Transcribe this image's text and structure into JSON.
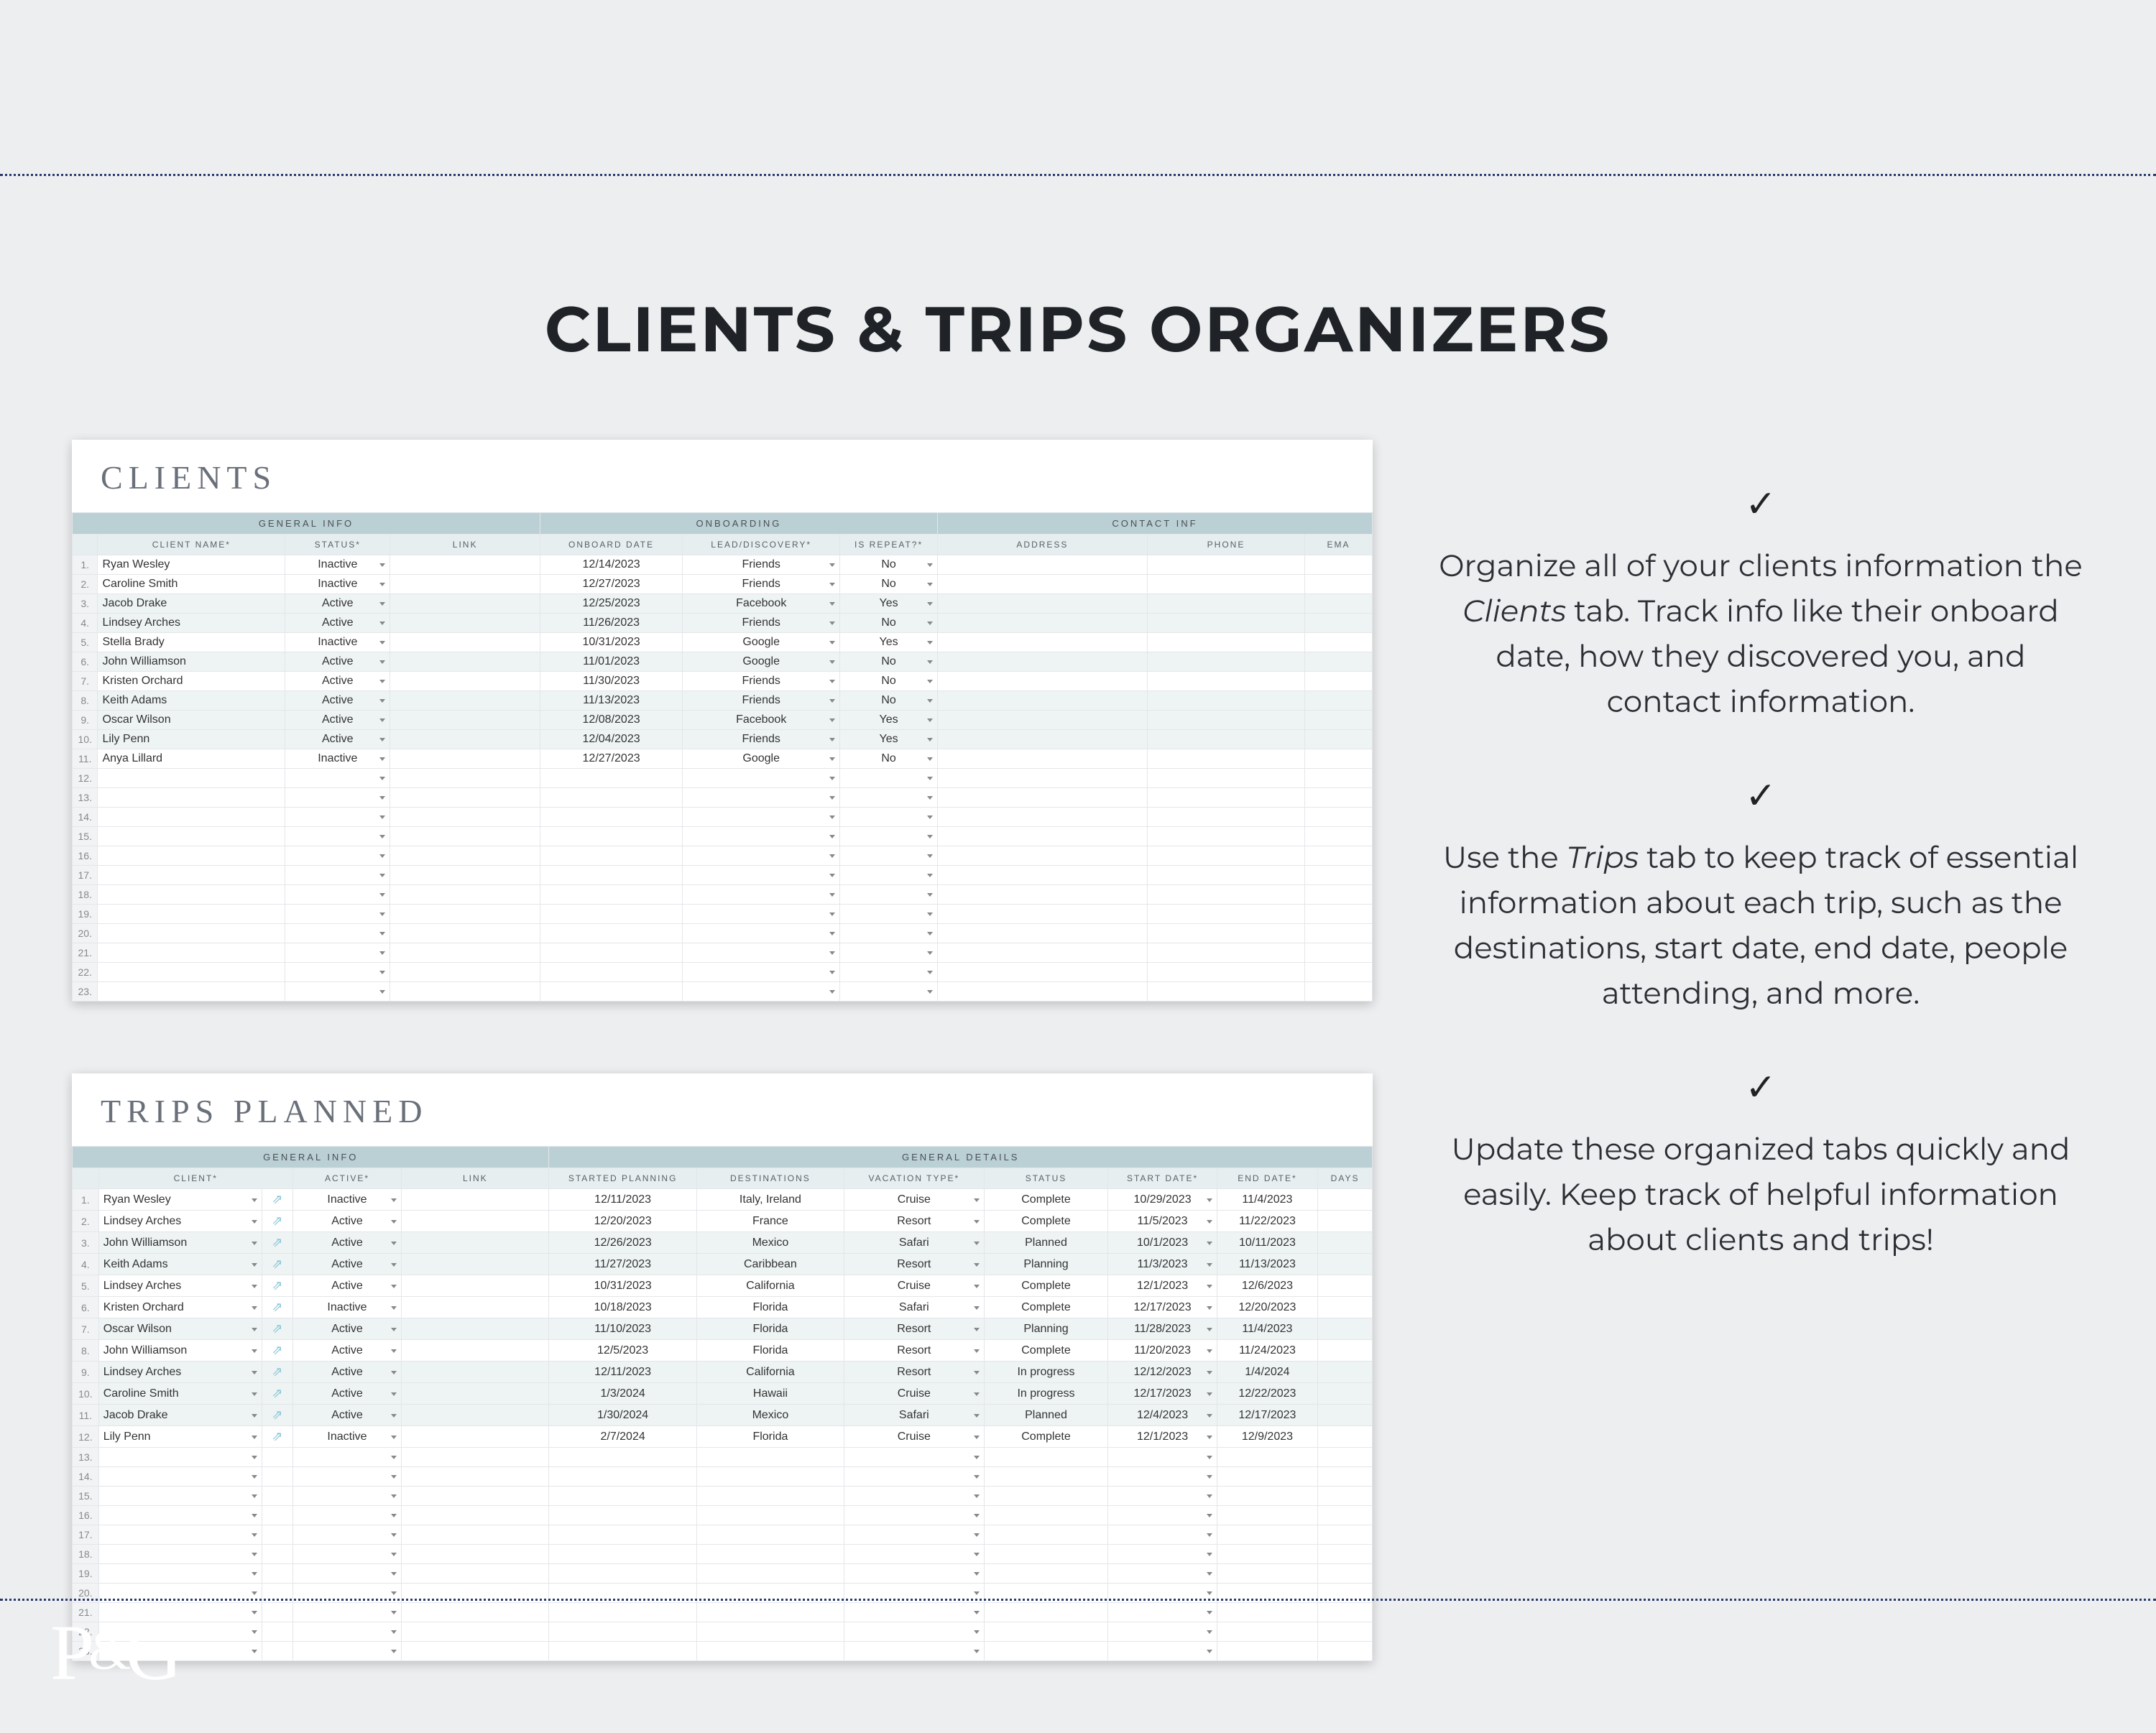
{
  "page": {
    "title": "CLIENTS & TRIPS ORGANIZERS"
  },
  "colors": {
    "page_bg": "#eceef0",
    "dotted_rule": "#2a3a6b",
    "group_bg": "#bbd0d4",
    "header_bg": "#e6eef0",
    "stripe_bg": "#eef3f4",
    "sheet_title_color": "#6a707a",
    "link_icon_color": "#86c5d6"
  },
  "clients": {
    "title": "CLIENTS",
    "row_count": 23,
    "groups": {
      "general": "GENERAL INFO",
      "onboarding": "ONBOARDING",
      "contact": "CONTACT INF"
    },
    "headers": {
      "name": "CLIENT NAME*",
      "status": "STATUS*",
      "link": "LINK",
      "onboard": "ONBOARD DATE",
      "lead": "LEAD/DISCOVERY*",
      "repeat": "IS REPEAT?*",
      "address": "ADDRESS",
      "phone": "PHONE",
      "email": "EMA"
    },
    "rows": [
      {
        "n": "1.",
        "name": "Ryan Wesley",
        "status": "Inactive",
        "onboard": "12/14/2023",
        "lead": "Friends",
        "repeat": "No"
      },
      {
        "n": "2.",
        "name": "Caroline Smith",
        "status": "Inactive",
        "onboard": "12/27/2023",
        "lead": "Friends",
        "repeat": "No"
      },
      {
        "n": "3.",
        "name": "Jacob Drake",
        "status": "Active",
        "onboard": "12/25/2023",
        "lead": "Facebook",
        "repeat": "Yes"
      },
      {
        "n": "4.",
        "name": "Lindsey Arches",
        "status": "Active",
        "onboard": "11/26/2023",
        "lead": "Friends",
        "repeat": "No"
      },
      {
        "n": "5.",
        "name": "Stella Brady",
        "status": "Inactive",
        "onboard": "10/31/2023",
        "lead": "Google",
        "repeat": "Yes"
      },
      {
        "n": "6.",
        "name": "John Williamson",
        "status": "Active",
        "onboard": "11/01/2023",
        "lead": "Google",
        "repeat": "No"
      },
      {
        "n": "7.",
        "name": "Kristen Orchard",
        "status": "Active",
        "onboard": "11/30/2023",
        "lead": "Friends",
        "repeat": "No"
      },
      {
        "n": "8.",
        "name": "Keith Adams",
        "status": "Active",
        "onboard": "11/13/2023",
        "lead": "Friends",
        "repeat": "No"
      },
      {
        "n": "9.",
        "name": "Oscar Wilson",
        "status": "Active",
        "onboard": "12/08/2023",
        "lead": "Facebook",
        "repeat": "Yes"
      },
      {
        "n": "10.",
        "name": "Lily Penn",
        "status": "Active",
        "onboard": "12/04/2023",
        "lead": "Friends",
        "repeat": "Yes"
      },
      {
        "n": "11.",
        "name": "Anya Lillard",
        "status": "Inactive",
        "onboard": "12/27/2023",
        "lead": "Google",
        "repeat": "No"
      }
    ]
  },
  "trips": {
    "title": "TRIPS PLANNED",
    "row_count": 23,
    "link_glyph": "⇗",
    "groups": {
      "general": "GENERAL INFO",
      "details": "GENERAL DETAILS"
    },
    "headers": {
      "client": "CLIENT*",
      "active": "ACTIVE*",
      "link": "LINK",
      "started": "STARTED PLANNING",
      "dest": "DESTINATIONS",
      "type": "VACATION TYPE*",
      "status": "STATUS",
      "start": "START DATE*",
      "end": "END DATE*",
      "days": "DAYS"
    },
    "rows": [
      {
        "n": "1.",
        "client": "Ryan Wesley",
        "active": "Inactive",
        "started": "12/11/2023",
        "dest": "Italy, Ireland",
        "type": "Cruise",
        "status": "Complete",
        "start": "10/29/2023",
        "end": "11/4/2023"
      },
      {
        "n": "2.",
        "client": "Lindsey Arches",
        "active": "Active",
        "started": "12/20/2023",
        "dest": "France",
        "type": "Resort",
        "status": "Complete",
        "start": "11/5/2023",
        "end": "11/22/2023"
      },
      {
        "n": "3.",
        "client": "John Williamson",
        "active": "Active",
        "started": "12/26/2023",
        "dest": "Mexico",
        "type": "Safari",
        "status": "Planned",
        "start": "10/1/2023",
        "end": "10/11/2023"
      },
      {
        "n": "4.",
        "client": "Keith Adams",
        "active": "Active",
        "started": "11/27/2023",
        "dest": "Caribbean",
        "type": "Resort",
        "status": "Planning",
        "start": "11/3/2023",
        "end": "11/13/2023"
      },
      {
        "n": "5.",
        "client": "Lindsey Arches",
        "active": "Active",
        "started": "10/31/2023",
        "dest": "California",
        "type": "Cruise",
        "status": "Complete",
        "start": "12/1/2023",
        "end": "12/6/2023"
      },
      {
        "n": "6.",
        "client": "Kristen Orchard",
        "active": "Inactive",
        "started": "10/18/2023",
        "dest": "Florida",
        "type": "Safari",
        "status": "Complete",
        "start": "12/17/2023",
        "end": "12/20/2023"
      },
      {
        "n": "7.",
        "client": "Oscar Wilson",
        "active": "Active",
        "started": "11/10/2023",
        "dest": "Florida",
        "type": "Resort",
        "status": "Planning",
        "start": "11/28/2023",
        "end": "11/4/2023"
      },
      {
        "n": "8.",
        "client": "John Williamson",
        "active": "Active",
        "started": "12/5/2023",
        "dest": "Florida",
        "type": "Resort",
        "status": "Complete",
        "start": "11/20/2023",
        "end": "11/24/2023"
      },
      {
        "n": "9.",
        "client": "Lindsey Arches",
        "active": "Active",
        "started": "12/11/2023",
        "dest": "California",
        "type": "Resort",
        "status": "In progress",
        "start": "12/12/2023",
        "end": "1/4/2024"
      },
      {
        "n": "10.",
        "client": "Caroline Smith",
        "active": "Active",
        "started": "1/3/2024",
        "dest": "Hawaii",
        "type": "Cruise",
        "status": "In progress",
        "start": "12/17/2023",
        "end": "12/22/2023"
      },
      {
        "n": "11.",
        "client": "Jacob Drake",
        "active": "Active",
        "started": "1/30/2024",
        "dest": "Mexico",
        "type": "Safari",
        "status": "Planned",
        "start": "12/4/2023",
        "end": "12/17/2023"
      },
      {
        "n": "12.",
        "client": "Lily Penn",
        "active": "Inactive",
        "started": "2/7/2024",
        "dest": "Florida",
        "type": "Cruise",
        "status": "Complete",
        "start": "12/1/2023",
        "end": "12/9/2023"
      }
    ]
  },
  "side": {
    "check": "✓",
    "p1a": "Organize all of your clients information the ",
    "p1i": "Clients",
    "p1b": " tab. Track info like their onboard date, how they discovered you, and contact information.",
    "p2a": "Use the ",
    "p2i": "Trips",
    "p2b": " tab to keep track of essential information about each trip, such as the destinations, start date, end date, people attending, and more.",
    "p3": "Update these organized tabs quickly and easily. Keep track of helpful information about clients and trips!"
  },
  "logo": {
    "p": "P",
    "amp": "&",
    "g": "G"
  }
}
